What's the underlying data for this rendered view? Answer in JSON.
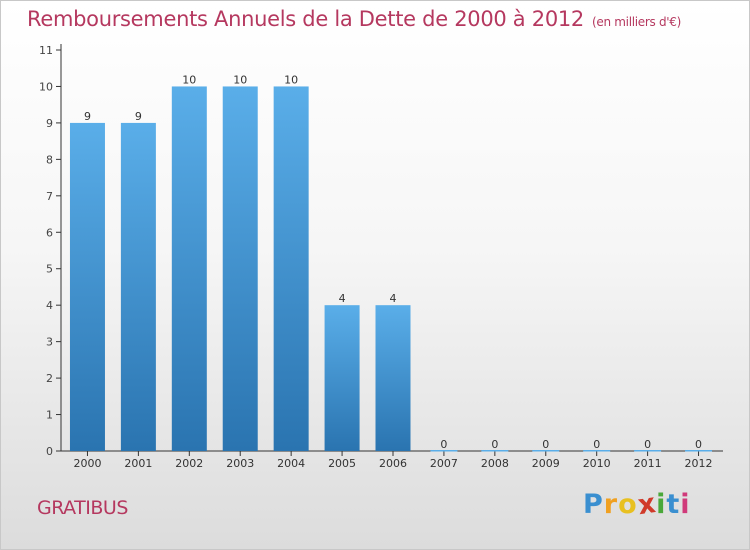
{
  "chart_data": {
    "type": "bar",
    "title": "Remboursements Annuels de la Dette de 2000 à 2012",
    "unit_label": "(en milliers d'€)",
    "categories": [
      "2000",
      "2001",
      "2002",
      "2003",
      "2004",
      "2005",
      "2006",
      "2007",
      "2008",
      "2009",
      "2010",
      "2011",
      "2012"
    ],
    "values": [
      9,
      9,
      10,
      10,
      10,
      4,
      4,
      0,
      0,
      0,
      0,
      0,
      0
    ],
    "ylim": [
      0,
      11
    ],
    "yticks": [
      0,
      1,
      2,
      3,
      4,
      5,
      6,
      7,
      8,
      9,
      10,
      11
    ],
    "xlabel": "",
    "ylabel": "",
    "grid": false,
    "bar_color_top": "#5aaee9",
    "bar_color_bottom": "#2a74b0"
  },
  "commune": "GRATIBUS",
  "brand": {
    "letters": [
      "P",
      "r",
      "o",
      "x",
      "i",
      "t",
      "i"
    ],
    "colors": [
      "#3a8fd0",
      "#f0a020",
      "#e8c020",
      "#d03a2a",
      "#4aa83a",
      "#3a8fd0",
      "#d03a7a"
    ]
  }
}
